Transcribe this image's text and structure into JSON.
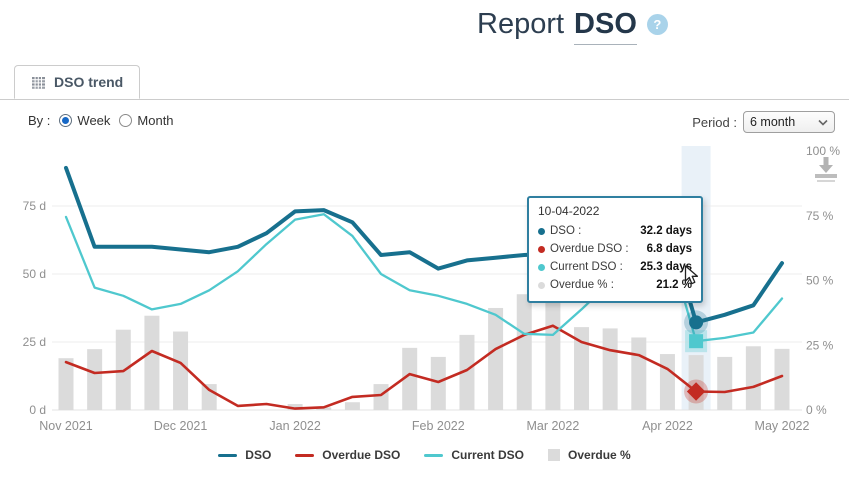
{
  "header": {
    "title_light": "Report",
    "title_bold": "DSO",
    "help": "?"
  },
  "tabs": {
    "active_label": "DSO trend"
  },
  "controls": {
    "by_label": "By :",
    "options": [
      {
        "label": "Week",
        "selected": true
      },
      {
        "label": "Month",
        "selected": false
      }
    ],
    "period_label": "Period :",
    "period_value": "6 month"
  },
  "colors": {
    "dso": "#17708e",
    "overdue_dso": "#c32b22",
    "current_dso": "#4fc8ce",
    "overdue_pct": "#dbdbdb",
    "grid": "#ececec",
    "axis_text": "#8f8f8f",
    "band": "#e9f1f8",
    "tooltip_border": "#2f7fa0"
  },
  "tooltip": {
    "date": "10-04-2022",
    "rows": [
      {
        "key": "dso",
        "label": "DSO :",
        "value": "32.2 days"
      },
      {
        "key": "overdue_dso",
        "label": "Overdue DSO :",
        "value": "6.8 days"
      },
      {
        "key": "current_dso",
        "label": "Current DSO :",
        "value": "25.3 days"
      },
      {
        "key": "overdue_pct",
        "label": "Overdue % :",
        "value": "21.2 %"
      }
    ]
  },
  "legend": [
    {
      "key": "dso",
      "label": "DSO",
      "swatch": "line"
    },
    {
      "key": "overdue_dso",
      "label": "Overdue DSO",
      "swatch": "line"
    },
    {
      "key": "current_dso",
      "label": "Current DSO",
      "swatch": "line"
    },
    {
      "key": "overdue_pct",
      "label": "Overdue %",
      "swatch": "square"
    }
  ],
  "chart_data": {
    "type": "mixed-line-bar",
    "x_unit": "week",
    "weeks": 26,
    "month_ticks": [
      {
        "week": 0,
        "label": "Nov 2021"
      },
      {
        "week": 4,
        "label": "Dec 2021"
      },
      {
        "week": 8,
        "label": "Jan 2022"
      },
      {
        "week": 13,
        "label": "Feb 2022"
      },
      {
        "week": 17,
        "label": "Mar 2022"
      },
      {
        "week": 21,
        "label": "Apr 2022"
      },
      {
        "week": 25,
        "label": "May 2022"
      }
    ],
    "y_left": {
      "ticks": [
        0,
        25,
        50,
        75
      ],
      "suffix": " d",
      "range": [
        0,
        96
      ]
    },
    "y_right": {
      "ticks": [
        0,
        25,
        50,
        75,
        100
      ],
      "suffix": " %",
      "range": [
        0,
        100
      ]
    },
    "highlighted_week": 22,
    "highlighted_date": "10-04-2022",
    "series": [
      {
        "name": "DSO",
        "type": "line",
        "axis": "left",
        "color": "#17708e",
        "width": 4,
        "values": [
          89,
          60,
          60,
          60,
          59,
          58,
          60,
          65,
          73,
          73.5,
          69,
          57,
          58,
          52,
          55,
          56,
          57,
          57.5,
          58.5,
          60,
          64,
          68,
          32.2,
          35,
          38.5,
          54
        ],
        "marker": "circle"
      },
      {
        "name": "Overdue DSO",
        "type": "line",
        "axis": "left",
        "color": "#c32b22",
        "width": 2.6,
        "values": [
          17.6,
          13.6,
          14.3,
          21.7,
          17.3,
          7.4,
          1.5,
          2.2,
          0.5,
          1,
          4.8,
          5.5,
          13.2,
          10.3,
          14.7,
          22.4,
          27.6,
          31,
          25,
          22,
          20.2,
          15.1,
          6.8,
          6.6,
          8.5,
          12.5
        ],
        "marker": "diamond"
      },
      {
        "name": "Current DSO",
        "type": "line",
        "axis": "left",
        "color": "#4fc8ce",
        "width": 2.3,
        "values": [
          71,
          45,
          42,
          37,
          39,
          44,
          51,
          61,
          70,
          72,
          64,
          50,
          44,
          42,
          39,
          35,
          28,
          27.6,
          37,
          47,
          55,
          62,
          25.3,
          26.5,
          28.5,
          41
        ],
        "marker": "square"
      },
      {
        "name": "Overdue %",
        "type": "bar",
        "axis": "right",
        "color": "#dbdbdb",
        "values": [
          20,
          23.5,
          31,
          36.4,
          30.3,
          10,
          0,
          0,
          2.3,
          1,
          3,
          10,
          24,
          20.5,
          29,
          39.4,
          44.7,
          43.5,
          32,
          31.5,
          28,
          21.6,
          21.2,
          20.5,
          24.6,
          23.6
        ]
      }
    ]
  }
}
